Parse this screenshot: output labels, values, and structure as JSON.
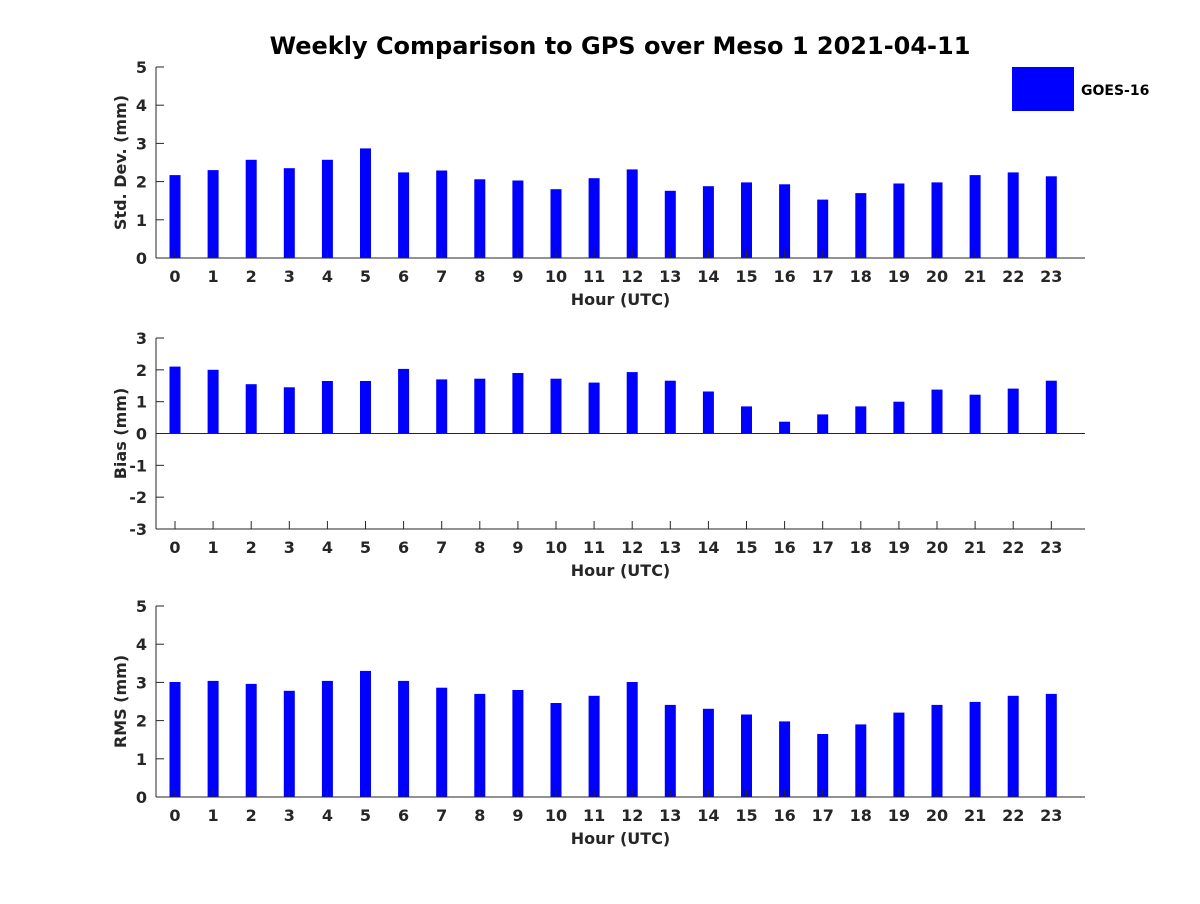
{
  "figure": {
    "title": "Weekly Comparison to GPS over Meso 1 2021-04-11"
  },
  "legend": {
    "label": "GOES-16",
    "color": "#0000ff"
  },
  "chart_data": [
    {
      "type": "bar",
      "categories": [
        "0",
        "1",
        "2",
        "3",
        "4",
        "5",
        "6",
        "7",
        "8",
        "9",
        "10",
        "11",
        "12",
        "13",
        "14",
        "15",
        "16",
        "17",
        "18",
        "19",
        "20",
        "21",
        "22",
        "23"
      ],
      "series": [
        {
          "name": "GOES-16",
          "values": [
            2.17,
            2.3,
            2.57,
            2.35,
            2.57,
            2.87,
            2.24,
            2.29,
            2.06,
            2.03,
            1.8,
            2.09,
            2.32,
            1.76,
            1.88,
            1.98,
            1.93,
            1.53,
            1.7,
            1.95,
            1.98,
            2.17,
            2.24,
            2.14
          ]
        }
      ],
      "xlabel": "Hour (UTC)",
      "ylabel": "Std. Dev. (mm)",
      "ylim": [
        0,
        5
      ],
      "yticks": [
        "0",
        "1",
        "2",
        "3",
        "4",
        "5"
      ],
      "grid": false,
      "legend_position": "top-right",
      "color": "#0000ff"
    },
    {
      "type": "bar",
      "categories": [
        "0",
        "1",
        "2",
        "3",
        "4",
        "5",
        "6",
        "7",
        "8",
        "9",
        "10",
        "11",
        "12",
        "13",
        "14",
        "15",
        "16",
        "17",
        "18",
        "19",
        "20",
        "21",
        "22",
        "23"
      ],
      "series": [
        {
          "name": "GOES-16",
          "values": [
            2.1,
            2.0,
            1.55,
            1.45,
            1.65,
            1.65,
            2.03,
            1.7,
            1.72,
            1.9,
            1.72,
            1.6,
            1.93,
            1.66,
            1.32,
            0.85,
            0.37,
            0.6,
            0.85,
            1.0,
            1.38,
            1.22,
            1.41,
            1.66
          ]
        }
      ],
      "xlabel": "Hour (UTC)",
      "ylabel": "Bias (mm)",
      "ylim": [
        -3,
        3
      ],
      "yticks": [
        "-3",
        "-2",
        "-1",
        "0",
        "1",
        "2",
        "3"
      ],
      "grid": false,
      "color": "#0000ff"
    },
    {
      "type": "bar",
      "categories": [
        "0",
        "1",
        "2",
        "3",
        "4",
        "5",
        "6",
        "7",
        "8",
        "9",
        "10",
        "11",
        "12",
        "13",
        "14",
        "15",
        "16",
        "17",
        "18",
        "19",
        "20",
        "21",
        "22",
        "23"
      ],
      "series": [
        {
          "name": "GOES-16",
          "values": [
            3.01,
            3.04,
            2.96,
            2.78,
            3.04,
            3.3,
            3.04,
            2.86,
            2.7,
            2.8,
            2.46,
            2.65,
            3.01,
            2.41,
            2.31,
            2.16,
            1.98,
            1.65,
            1.9,
            2.21,
            2.41,
            2.49,
            2.65,
            2.7
          ]
        }
      ],
      "xlabel": "Hour (UTC)",
      "ylabel": "RMS (mm)",
      "ylim": [
        0,
        5
      ],
      "yticks": [
        "0",
        "1",
        "2",
        "3",
        "4",
        "5"
      ],
      "grid": false,
      "color": "#0000ff"
    }
  ]
}
